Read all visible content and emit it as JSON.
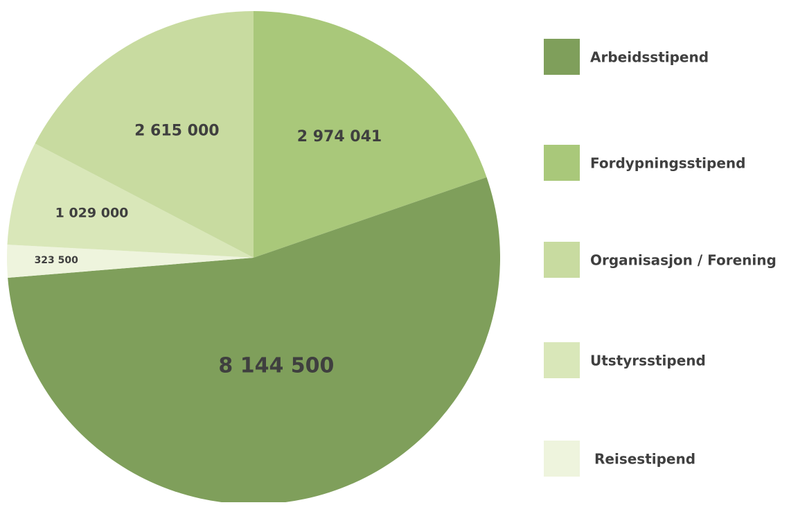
{
  "chart_data": {
    "type": "pie",
    "categories": [
      "Arbeidsstipend",
      "Fordypningsstipend",
      "Organisasjon / Forening",
      "Utstyrsstipend",
      "Reisestipend"
    ],
    "values": [
      8144500,
      2974041,
      2615000,
      1029000,
      323500
    ],
    "value_labels": [
      "8 144 500",
      "2 974 041",
      "2 615 000",
      "1 029 000",
      "323 500"
    ],
    "colors": [
      "#7f9f5b",
      "#a9c87a",
      "#c8dba0",
      "#d9e7b9",
      "#eef4dd"
    ],
    "legend": "right"
  }
}
